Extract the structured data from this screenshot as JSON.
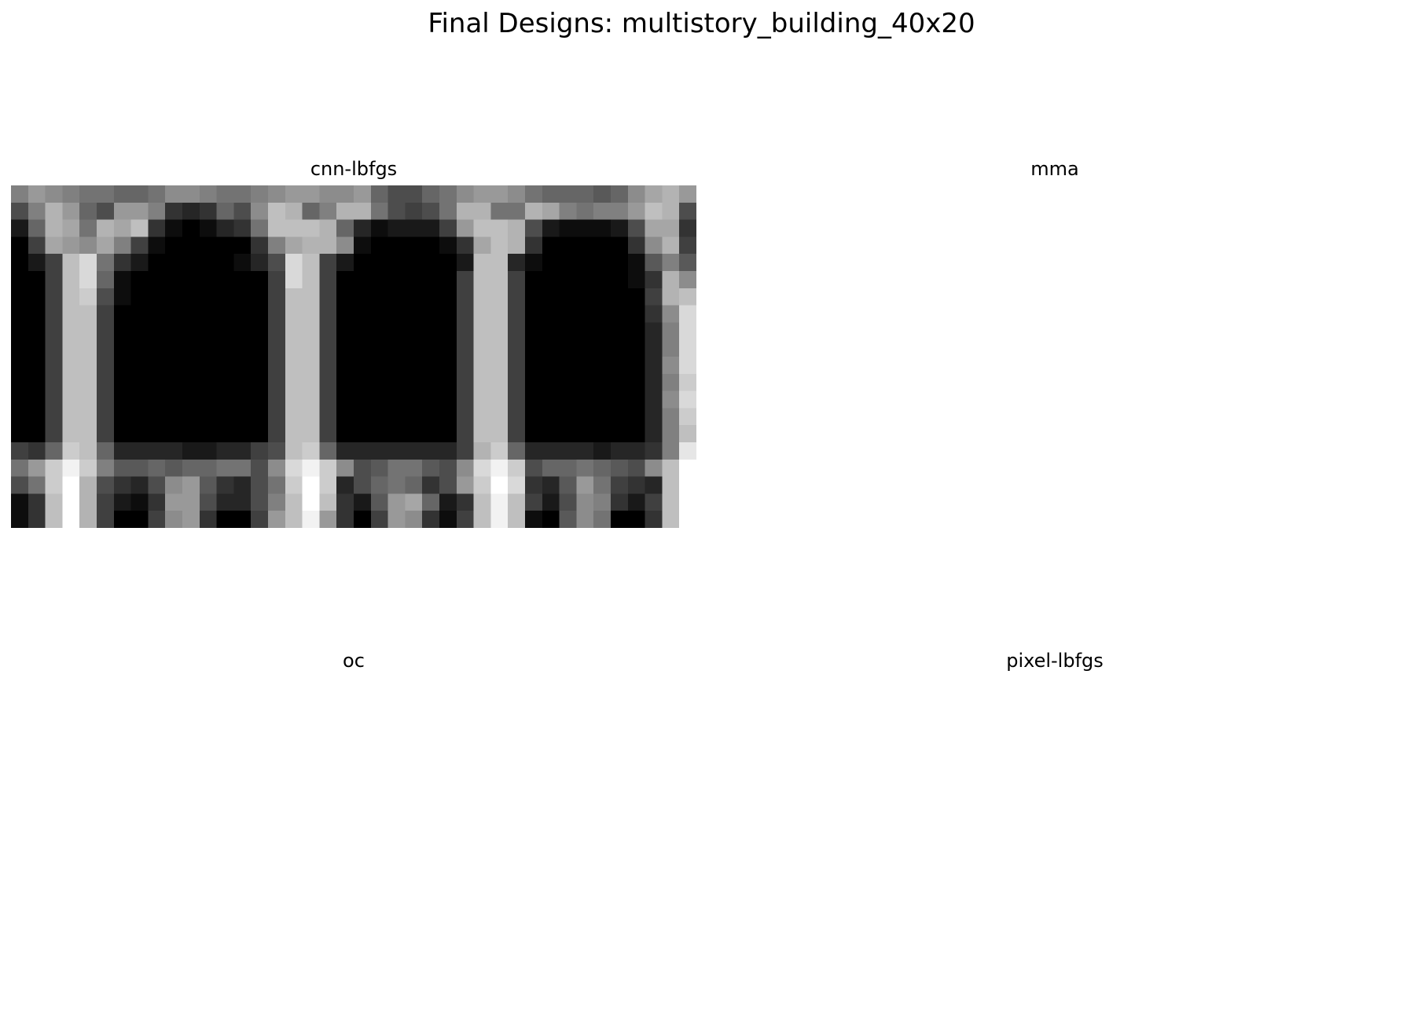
{
  "title": "Final Designs: multistory_building_40x20",
  "panels": [
    {
      "title": "cnn-lbfgs"
    },
    {
      "title": "mma"
    },
    {
      "title": "oc"
    },
    {
      "title": "pixel-lbfgs"
    }
  ],
  "chart_data": [
    {
      "type": "heatmap",
      "title": "cnn-lbfgs",
      "colormap": "gray_r",
      "vmin": 0,
      "vmax": 1,
      "axes": "off",
      "grid_shape": [
        20,
        40
      ],
      "values": [
        [
          0.5,
          0.4,
          0.45,
          0.5,
          0.55,
          0.55,
          0.6,
          0.6,
          0.55,
          0.45,
          0.45,
          0.5,
          0.55,
          0.55,
          0.5,
          0.45,
          0.4,
          0.4,
          0.45,
          0.45,
          0.4,
          0.6,
          0.7,
          0.7,
          0.6,
          0.55,
          0.45,
          0.4,
          0.4,
          0.45,
          0.55,
          0.6,
          0.6,
          0.6,
          0.65,
          0.6,
          0.45,
          0.35,
          0.3,
          0.4
        ],
        [
          0.7,
          0.5,
          0.3,
          0.4,
          0.6,
          0.7,
          0.4,
          0.4,
          0.5,
          0.8,
          0.85,
          0.8,
          0.6,
          0.7,
          0.45,
          0.25,
          0.3,
          0.6,
          0.5,
          0.3,
          0.3,
          0.55,
          0.7,
          0.75,
          0.7,
          0.55,
          0.3,
          0.3,
          0.55,
          0.55,
          0.3,
          0.35,
          0.5,
          0.55,
          0.5,
          0.5,
          0.4,
          0.25,
          0.3,
          0.7
        ],
        [
          0.9,
          0.6,
          0.3,
          0.35,
          0.55,
          0.3,
          0.35,
          0.25,
          0.8,
          0.95,
          1.0,
          0.95,
          0.85,
          0.8,
          0.55,
          0.25,
          0.25,
          0.25,
          0.3,
          0.6,
          0.85,
          0.95,
          0.9,
          0.9,
          0.9,
          0.75,
          0.4,
          0.25,
          0.25,
          0.3,
          0.7,
          0.9,
          0.95,
          0.95,
          0.95,
          0.9,
          0.7,
          0.35,
          0.35,
          0.8
        ],
        [
          1.0,
          0.75,
          0.35,
          0.4,
          0.45,
          0.35,
          0.5,
          0.75,
          0.95,
          1.0,
          1.0,
          1.0,
          1.0,
          1.0,
          0.8,
          0.5,
          0.35,
          0.3,
          0.3,
          0.45,
          0.95,
          1.0,
          1.0,
          1.0,
          1.0,
          0.95,
          0.8,
          0.35,
          0.25,
          0.3,
          0.8,
          1.0,
          1.0,
          1.0,
          1.0,
          1.0,
          0.8,
          0.45,
          0.3,
          0.75
        ],
        [
          1.0,
          0.9,
          0.75,
          0.25,
          0.15,
          0.55,
          0.8,
          0.9,
          1.0,
          1.0,
          1.0,
          1.0,
          1.0,
          0.95,
          0.85,
          0.7,
          0.15,
          0.25,
          0.75,
          0.9,
          1.0,
          1.0,
          1.0,
          1.0,
          1.0,
          1.0,
          0.9,
          0.25,
          0.25,
          0.85,
          0.95,
          1.0,
          1.0,
          1.0,
          1.0,
          1.0,
          0.95,
          0.65,
          0.5,
          0.65
        ],
        [
          1.0,
          1.0,
          0.75,
          0.25,
          0.15,
          0.6,
          0.95,
          1.0,
          1.0,
          1.0,
          1.0,
          1.0,
          1.0,
          1.0,
          1.0,
          0.75,
          0.15,
          0.25,
          0.75,
          1.0,
          1.0,
          1.0,
          1.0,
          1.0,
          1.0,
          1.0,
          0.75,
          0.25,
          0.25,
          0.75,
          1.0,
          1.0,
          1.0,
          1.0,
          1.0,
          1.0,
          0.95,
          0.8,
          0.3,
          0.45
        ],
        [
          1.0,
          1.0,
          0.75,
          0.25,
          0.2,
          0.7,
          0.95,
          1.0,
          1.0,
          1.0,
          1.0,
          1.0,
          1.0,
          1.0,
          1.0,
          0.75,
          0.25,
          0.25,
          0.75,
          1.0,
          1.0,
          1.0,
          1.0,
          1.0,
          1.0,
          1.0,
          0.75,
          0.25,
          0.25,
          0.75,
          1.0,
          1.0,
          1.0,
          1.0,
          1.0,
          1.0,
          1.0,
          0.75,
          0.3,
          0.25
        ],
        [
          1.0,
          1.0,
          0.75,
          0.25,
          0.25,
          0.75,
          1.0,
          1.0,
          1.0,
          1.0,
          1.0,
          1.0,
          1.0,
          1.0,
          1.0,
          0.75,
          0.25,
          0.25,
          0.75,
          1.0,
          1.0,
          1.0,
          1.0,
          1.0,
          1.0,
          1.0,
          0.75,
          0.25,
          0.25,
          0.75,
          1.0,
          1.0,
          1.0,
          1.0,
          1.0,
          1.0,
          1.0,
          0.8,
          0.45,
          0.15
        ],
        [
          1.0,
          1.0,
          0.75,
          0.25,
          0.25,
          0.75,
          1.0,
          1.0,
          1.0,
          1.0,
          1.0,
          1.0,
          1.0,
          1.0,
          1.0,
          0.75,
          0.25,
          0.25,
          0.75,
          1.0,
          1.0,
          1.0,
          1.0,
          1.0,
          1.0,
          1.0,
          0.75,
          0.25,
          0.25,
          0.75,
          1.0,
          1.0,
          1.0,
          1.0,
          1.0,
          1.0,
          1.0,
          0.85,
          0.5,
          0.15
        ],
        [
          1.0,
          1.0,
          0.75,
          0.25,
          0.25,
          0.75,
          1.0,
          1.0,
          1.0,
          1.0,
          1.0,
          1.0,
          1.0,
          1.0,
          1.0,
          0.75,
          0.25,
          0.25,
          0.75,
          1.0,
          1.0,
          1.0,
          1.0,
          1.0,
          1.0,
          1.0,
          0.75,
          0.25,
          0.25,
          0.75,
          1.0,
          1.0,
          1.0,
          1.0,
          1.0,
          1.0,
          1.0,
          0.85,
          0.5,
          0.15
        ],
        [
          1.0,
          1.0,
          0.75,
          0.25,
          0.25,
          0.75,
          1.0,
          1.0,
          1.0,
          1.0,
          1.0,
          1.0,
          1.0,
          1.0,
          1.0,
          0.75,
          0.25,
          0.25,
          0.75,
          1.0,
          1.0,
          1.0,
          1.0,
          1.0,
          1.0,
          1.0,
          0.75,
          0.25,
          0.25,
          0.75,
          1.0,
          1.0,
          1.0,
          1.0,
          1.0,
          1.0,
          1.0,
          0.85,
          0.45,
          0.15
        ],
        [
          1.0,
          1.0,
          0.75,
          0.25,
          0.25,
          0.75,
          1.0,
          1.0,
          1.0,
          1.0,
          1.0,
          1.0,
          1.0,
          1.0,
          1.0,
          0.75,
          0.25,
          0.25,
          0.75,
          1.0,
          1.0,
          1.0,
          1.0,
          1.0,
          1.0,
          1.0,
          0.75,
          0.25,
          0.25,
          0.75,
          1.0,
          1.0,
          1.0,
          1.0,
          1.0,
          1.0,
          1.0,
          0.85,
          0.5,
          0.2
        ],
        [
          1.0,
          1.0,
          0.75,
          0.25,
          0.25,
          0.75,
          1.0,
          1.0,
          1.0,
          1.0,
          1.0,
          1.0,
          1.0,
          1.0,
          1.0,
          0.75,
          0.25,
          0.25,
          0.75,
          1.0,
          1.0,
          1.0,
          1.0,
          1.0,
          1.0,
          1.0,
          0.75,
          0.25,
          0.25,
          0.75,
          1.0,
          1.0,
          1.0,
          1.0,
          1.0,
          1.0,
          1.0,
          0.85,
          0.45,
          0.15
        ],
        [
          1.0,
          1.0,
          0.75,
          0.25,
          0.25,
          0.75,
          1.0,
          1.0,
          1.0,
          1.0,
          1.0,
          1.0,
          1.0,
          1.0,
          1.0,
          0.75,
          0.25,
          0.25,
          0.75,
          1.0,
          1.0,
          1.0,
          1.0,
          1.0,
          1.0,
          1.0,
          0.75,
          0.25,
          0.25,
          0.75,
          1.0,
          1.0,
          1.0,
          1.0,
          1.0,
          1.0,
          1.0,
          0.85,
          0.5,
          0.2
        ],
        [
          1.0,
          1.0,
          0.75,
          0.25,
          0.25,
          0.75,
          1.0,
          1.0,
          1.0,
          1.0,
          1.0,
          1.0,
          1.0,
          1.0,
          1.0,
          0.75,
          0.25,
          0.25,
          0.75,
          1.0,
          1.0,
          1.0,
          1.0,
          1.0,
          1.0,
          1.0,
          0.75,
          0.25,
          0.25,
          0.75,
          1.0,
          1.0,
          1.0,
          1.0,
          1.0,
          1.0,
          1.0,
          0.85,
          0.5,
          0.25
        ],
        [
          0.75,
          0.8,
          0.6,
          0.2,
          0.25,
          0.6,
          0.85,
          0.85,
          0.85,
          0.85,
          0.9,
          0.9,
          0.85,
          0.85,
          0.75,
          0.7,
          0.25,
          0.2,
          0.6,
          0.85,
          0.85,
          0.85,
          0.85,
          0.85,
          0.85,
          0.85,
          0.75,
          0.3,
          0.2,
          0.6,
          0.85,
          0.85,
          0.85,
          0.85,
          0.9,
          0.85,
          0.85,
          0.8,
          0.5,
          0.1
        ],
        [
          0.55,
          0.4,
          0.2,
          0.05,
          0.2,
          0.5,
          0.65,
          0.65,
          0.6,
          0.65,
          0.6,
          0.6,
          0.55,
          0.55,
          0.7,
          0.45,
          0.15,
          0.05,
          0.2,
          0.45,
          0.7,
          0.65,
          0.55,
          0.55,
          0.65,
          0.7,
          0.45,
          0.15,
          0.05,
          0.2,
          0.7,
          0.6,
          0.6,
          0.55,
          0.6,
          0.65,
          0.7,
          0.45,
          0.25,
          0.0
        ],
        [
          0.7,
          0.55,
          0.2,
          0.0,
          0.3,
          0.7,
          0.8,
          0.85,
          0.7,
          0.45,
          0.4,
          0.65,
          0.8,
          0.85,
          0.7,
          0.55,
          0.2,
          0.0,
          0.2,
          0.85,
          0.7,
          0.6,
          0.55,
          0.6,
          0.8,
          0.7,
          0.4,
          0.2,
          0.0,
          0.15,
          0.8,
          0.85,
          0.65,
          0.4,
          0.55,
          0.75,
          0.8,
          0.85,
          0.25,
          0.0
        ],
        [
          0.95,
          0.8,
          0.25,
          0.0,
          0.3,
          0.75,
          0.9,
          0.95,
          0.8,
          0.4,
          0.4,
          0.7,
          0.85,
          0.85,
          0.7,
          0.5,
          0.25,
          0.0,
          0.25,
          0.8,
          0.9,
          0.65,
          0.4,
          0.35,
          0.6,
          0.9,
          0.8,
          0.25,
          0.05,
          0.25,
          0.75,
          0.9,
          0.7,
          0.45,
          0.5,
          0.8,
          0.9,
          0.75,
          0.25,
          0.0
        ],
        [
          0.95,
          0.8,
          0.25,
          0.0,
          0.3,
          0.75,
          1.0,
          1.0,
          0.75,
          0.45,
          0.4,
          0.8,
          1.0,
          1.0,
          0.75,
          0.4,
          0.25,
          0.05,
          0.4,
          0.8,
          1.0,
          0.75,
          0.4,
          0.45,
          0.8,
          0.95,
          0.75,
          0.25,
          0.05,
          0.25,
          0.95,
          1.0,
          0.65,
          0.45,
          0.55,
          1.0,
          1.0,
          0.8,
          0.25,
          0.0
        ]
      ]
    },
    {
      "type": "heatmap",
      "title": "mma",
      "axes": "off",
      "values": []
    },
    {
      "type": "heatmap",
      "title": "oc",
      "axes": "off",
      "values": []
    },
    {
      "type": "heatmap",
      "title": "pixel-lbfgs",
      "axes": "off",
      "values": []
    }
  ]
}
